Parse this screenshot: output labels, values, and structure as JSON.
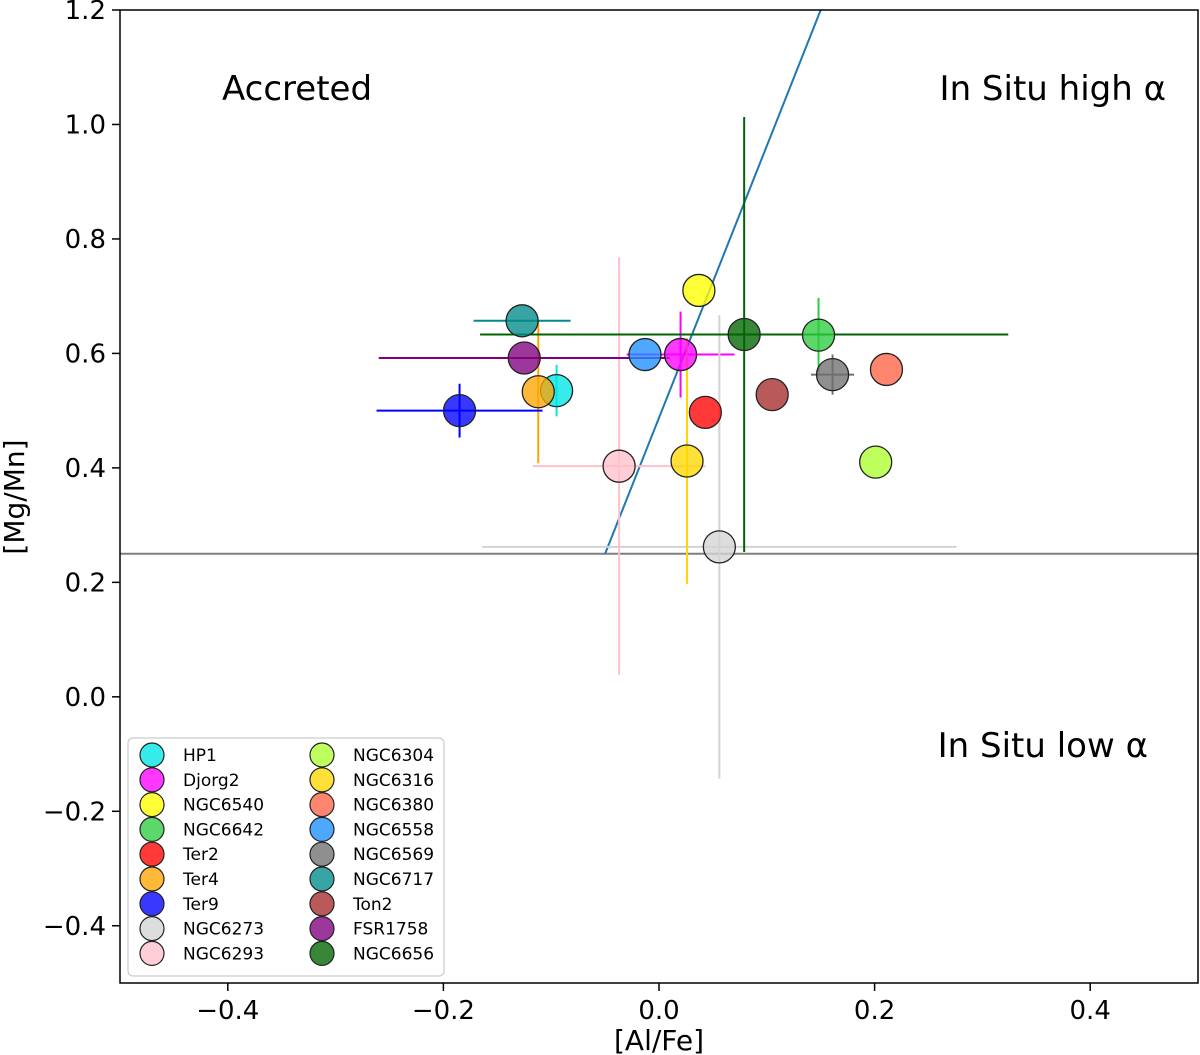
{
  "chart_data": {
    "type": "scatter",
    "xlabel": "[Al/Fe]",
    "ylabel": "[Mg/Mn]",
    "xlim": [
      -0.5,
      0.5
    ],
    "ylim": [
      -0.5,
      1.2
    ],
    "xticks": [
      -0.4,
      -0.2,
      0.0,
      0.2,
      0.4
    ],
    "xtick_labels": [
      "−0.4",
      "−0.2",
      "0.0",
      "0.2",
      "0.4"
    ],
    "yticks": [
      -0.4,
      -0.2,
      0.0,
      0.2,
      0.4,
      0.6,
      0.8,
      1.0,
      1.2
    ],
    "ytick_labels": [
      "−0.4",
      "−0.2",
      "0.0",
      "0.2",
      "0.4",
      "0.6",
      "0.8",
      "1.0",
      "1.2"
    ],
    "grid": false,
    "legend_position": "lower-left",
    "legend_columns": 2,
    "regions": {
      "accreted": "Accreted",
      "in_situ_high": "In Situ high α",
      "in_situ_low": "In Situ low α"
    },
    "dividers": {
      "horizontal_y": 0.25,
      "horizontal_color": "#7f7f7f",
      "diagonal": {
        "x1": -0.05,
        "y1": 0.25,
        "x2": 0.15,
        "y2": 1.2,
        "color": "#1f77b4"
      }
    },
    "series": [
      {
        "name": "HP1",
        "color": "#00e5e5",
        "x": -0.095,
        "y": 0.535,
        "xerr": 0.0,
        "yerr": 0.045
      },
      {
        "name": "Djorg2",
        "color": "#ff00ff",
        "x": 0.02,
        "y": 0.598,
        "xerr": 0.05,
        "yerr": 0.075
      },
      {
        "name": "NGC6540",
        "color": "#ffff00",
        "x": 0.037,
        "y": 0.71,
        "xerr": 0.0,
        "yerr": 0.0
      },
      {
        "name": "NGC6642",
        "color": "#2ecc40",
        "x": 0.148,
        "y": 0.632,
        "xerr": 0.0,
        "yerr": 0.065
      },
      {
        "name": "Ter2",
        "color": "#ff0000",
        "x": 0.043,
        "y": 0.497,
        "xerr": 0.0,
        "yerr": 0.0
      },
      {
        "name": "Ter4",
        "color": "#ffa500",
        "x": -0.112,
        "y": 0.533,
        "xerr": 0.0,
        "yerr": 0.125
      },
      {
        "name": "Ter9",
        "color": "#0000ff",
        "x": -0.185,
        "y": 0.5,
        "xerr": 0.077,
        "yerr": 0.047
      },
      {
        "name": "NGC6273",
        "color": "#d3d3d3",
        "x": 0.056,
        "y": 0.262,
        "xerr": 0.22,
        "yerr": 0.405
      },
      {
        "name": "NGC6293",
        "color": "#ffc0cb",
        "x": -0.037,
        "y": 0.403,
        "xerr": 0.08,
        "yerr": 0.365
      },
      {
        "name": "NGC6304",
        "color": "#adff2f",
        "x": 0.201,
        "y": 0.41,
        "xerr": 0.0,
        "yerr": 0.0
      },
      {
        "name": "NGC6316",
        "color": "#ffd700",
        "x": 0.026,
        "y": 0.412,
        "xerr": 0.0,
        "yerr": 0.215
      },
      {
        "name": "NGC6380",
        "color": "#ff6347",
        "x": 0.211,
        "y": 0.572,
        "xerr": 0.0,
        "yerr": 0.0
      },
      {
        "name": "NGC6558",
        "color": "#1e90ff",
        "x": -0.013,
        "y": 0.598,
        "xerr": 0.0,
        "yerr": 0.0
      },
      {
        "name": "NGC6569",
        "color": "#707070",
        "x": 0.161,
        "y": 0.563,
        "xerr": 0.02,
        "yerr": 0.035
      },
      {
        "name": "NGC6717",
        "color": "#008b8b",
        "x": -0.127,
        "y": 0.657,
        "xerr": 0.045,
        "yerr": 0.0
      },
      {
        "name": "Ton2",
        "color": "#a52a2a",
        "x": 0.105,
        "y": 0.528,
        "xerr": 0.0,
        "yerr": 0.0
      },
      {
        "name": "FSR1758",
        "color": "#800080",
        "x": -0.125,
        "y": 0.592,
        "xerr": 0.135,
        "yerr": 0.0
      },
      {
        "name": "NGC6656",
        "color": "#006400",
        "x": 0.079,
        "y": 0.633,
        "xerr": 0.245,
        "yerr": 0.38
      }
    ]
  }
}
